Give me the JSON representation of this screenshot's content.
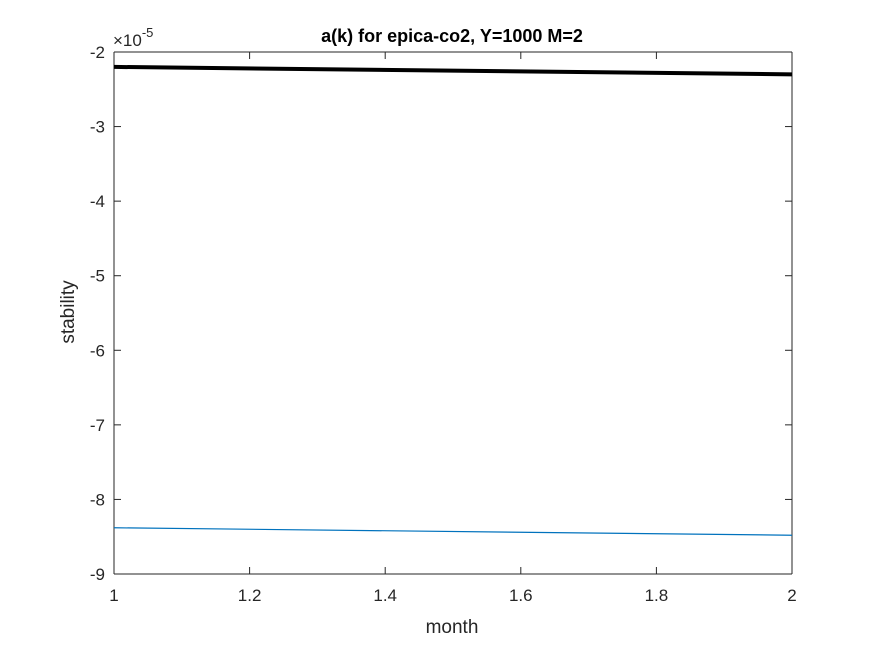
{
  "chart_data": {
    "type": "line",
    "title": "a(k) for epica-co2, Y=1000 M=2",
    "xlabel": "month",
    "ylabel": "stability",
    "y_exponent_base": "×10",
    "y_exponent_power": "-5",
    "xlim": [
      1,
      2
    ],
    "ylim": [
      -9,
      -2
    ],
    "x_ticks": [
      1,
      1.2,
      1.4,
      1.6,
      1.8,
      2
    ],
    "x_tick_labels": [
      "1",
      "1.2",
      "1.4",
      "1.6",
      "1.8",
      "2"
    ],
    "y_ticks": [
      -9,
      -8,
      -7,
      -6,
      -5,
      -4,
      -3,
      -2
    ],
    "y_tick_labels": [
      "-9",
      "-8",
      "-7",
      "-6",
      "-5",
      "-4",
      "-3",
      "-2"
    ],
    "grid": false,
    "series": [
      {
        "x": [
          1,
          2
        ],
        "y": [
          -2.2,
          -2.3
        ],
        "color": "#000000",
        "style": "thick"
      },
      {
        "x": [
          1,
          2
        ],
        "y": [
          -8.38,
          -8.48
        ],
        "color": "#0072BD",
        "style": "thin"
      }
    ]
  }
}
